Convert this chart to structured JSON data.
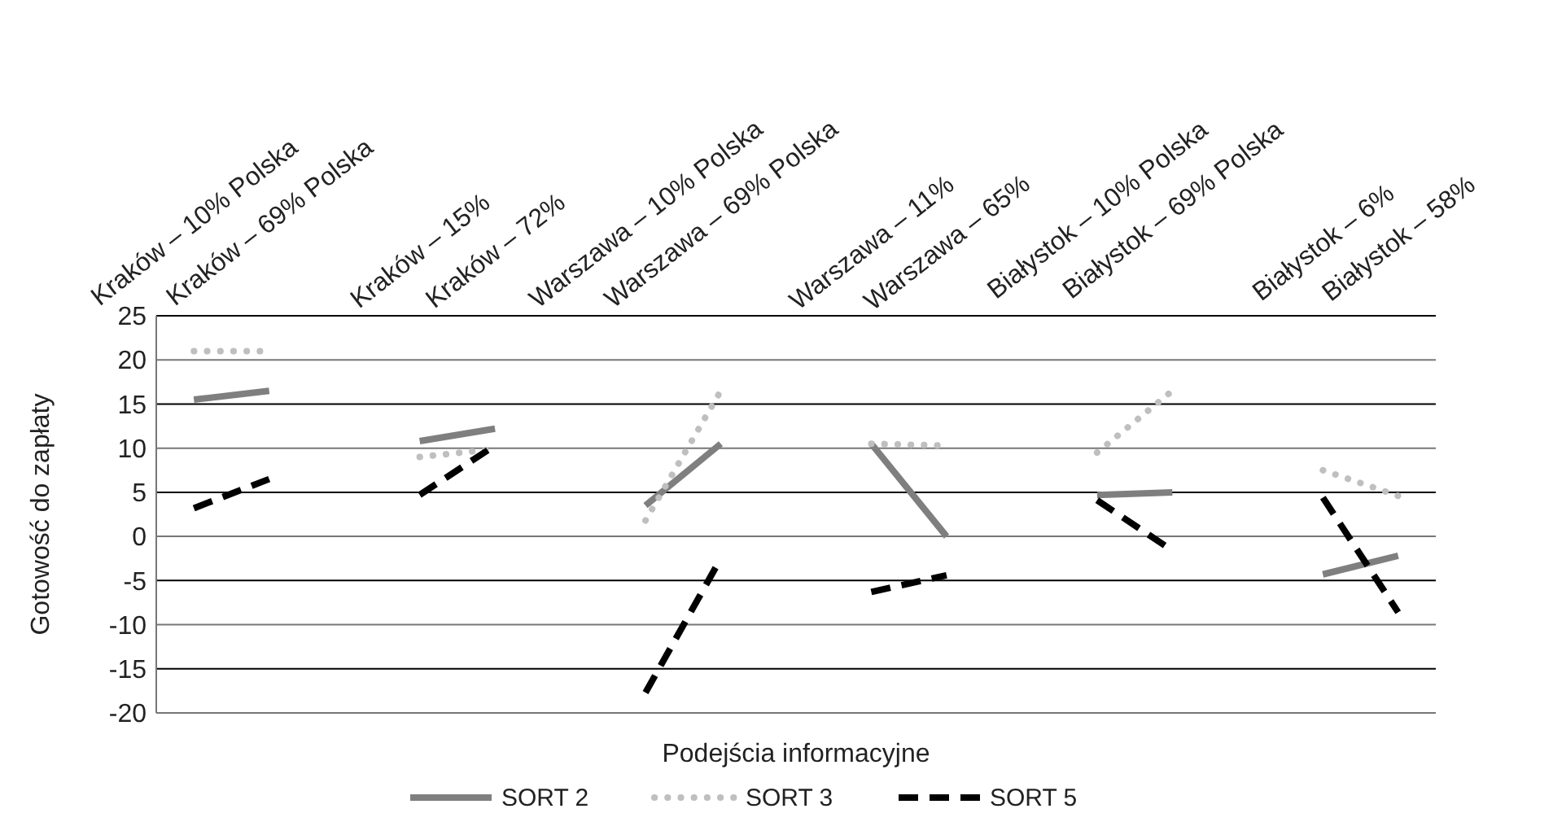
{
  "chart_data": {
    "type": "line",
    "xlabel": "Podejścia informacyjne",
    "ylabel": "Gotowość do zapłaty",
    "categories": [
      "Kraków – 10% Polska",
      "Kraków – 69% Polska",
      null,
      "Kraków – 15%",
      "Kraków – 72%",
      null,
      "Warszawa – 10% Polska",
      "Warszawa – 69% Polska",
      null,
      "Warszawa – 11%",
      "Warszawa – 65%",
      null,
      "Białystok – 10% Polska",
      "Białystok – 69% Polska",
      null,
      "Białystok – 6%",
      "Białystok – 58%"
    ],
    "series": [
      {
        "name": "SORT 2",
        "color": "#7f7f7f",
        "line_style": "solid",
        "values": [
          15.5,
          16.5,
          null,
          10.8,
          12.2,
          null,
          3.5,
          10.5,
          null,
          10.5,
          0,
          null,
          4.7,
          5,
          null,
          -4.3,
          -2.2
        ]
      },
      {
        "name": "SORT 3",
        "color": "#bfbfbf",
        "line_style": "dotted",
        "values": [
          21,
          21,
          null,
          9,
          9.9,
          null,
          1.8,
          16.5,
          null,
          10.5,
          10.3,
          null,
          9.5,
          16.5,
          null,
          7.5,
          4.6
        ]
      },
      {
        "name": "SORT 5",
        "color": "#000000",
        "line_style": "dashed",
        "values": [
          3.2,
          6.5,
          null,
          4.7,
          10.3,
          null,
          -17.7,
          -2.5,
          null,
          -6.3,
          -4.4,
          null,
          4.1,
          -1.6,
          null,
          4.4,
          -8.6
        ]
      }
    ],
    "ylim": [
      -20,
      25
    ],
    "yticks": [
      -20,
      -15,
      -10,
      -5,
      0,
      5,
      10,
      15,
      20,
      25
    ],
    "grid": "y",
    "legend": "bottom"
  }
}
